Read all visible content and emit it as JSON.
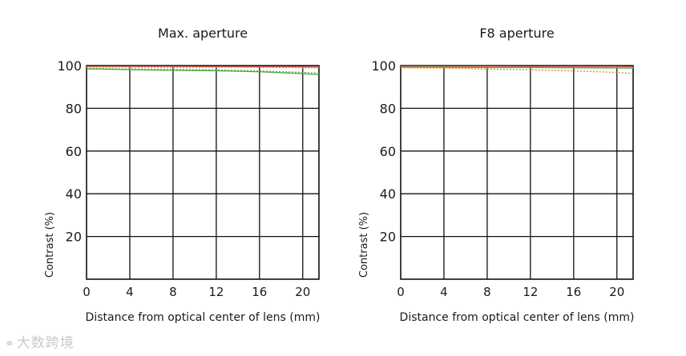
{
  "chart_data": [
    {
      "type": "line",
      "title": "Max. aperture",
      "xlabel": "Distance from optical center of lens (mm)",
      "ylabel": "Contrast (%)",
      "xlim": [
        0,
        21.5
      ],
      "ylim": [
        0,
        100
      ],
      "x_ticks": [
        0,
        4,
        8,
        12,
        16,
        20
      ],
      "y_ticks": [
        20,
        40,
        60,
        80,
        100
      ],
      "grid": true,
      "series": [
        {
          "color": "#d9534f",
          "dash": "solid",
          "x": [
            0,
            4,
            8,
            12,
            16,
            20,
            21.5
          ],
          "y": [
            99.6,
            99.6,
            99.6,
            99.5,
            99.5,
            99.4,
            99.3
          ]
        },
        {
          "color": "#c8a040",
          "dash": "dotted",
          "x": [
            0,
            4,
            8,
            12,
            16,
            20,
            21.5
          ],
          "y": [
            99.3,
            99.3,
            99.2,
            99.2,
            99.1,
            99.0,
            98.9
          ]
        },
        {
          "color": "#5aa845",
          "dash": "solid",
          "x": [
            0,
            4,
            8,
            12,
            16,
            20,
            21.5
          ],
          "y": [
            98.5,
            98.1,
            97.8,
            97.6,
            97.1,
            96.2,
            95.8
          ]
        },
        {
          "color": "#5aa845",
          "dash": "dotted",
          "x": [
            0,
            4,
            8,
            12,
            16,
            20,
            21.5
          ],
          "y": [
            98.7,
            98.4,
            98.2,
            98.0,
            97.5,
            96.8,
            96.5
          ]
        }
      ]
    },
    {
      "type": "line",
      "title": "F8 aperture",
      "xlabel": "Distance from optical center of lens (mm)",
      "ylabel": "Contrast (%)",
      "xlim": [
        0,
        21.5
      ],
      "ylim": [
        0,
        100
      ],
      "x_ticks": [
        0,
        4,
        8,
        12,
        16,
        20
      ],
      "y_ticks": [
        20,
        40,
        60,
        80,
        100
      ],
      "grid": true,
      "series": [
        {
          "color": "#d9534f",
          "dash": "solid",
          "x": [
            0,
            4,
            8,
            12,
            16,
            20,
            21.5
          ],
          "y": [
            99.7,
            99.7,
            99.7,
            99.6,
            99.6,
            99.6,
            99.5
          ]
        },
        {
          "color": "#c8a040",
          "dash": "dotted",
          "x": [
            0,
            4,
            8,
            12,
            16,
            20,
            21.5
          ],
          "y": [
            99.4,
            99.3,
            99.3,
            99.2,
            99.1,
            99.0,
            99.0
          ]
        },
        {
          "color": "#5aa845",
          "dash": "solid",
          "x": [
            0,
            4,
            8,
            12,
            16,
            20,
            21.5
          ],
          "y": [
            99.2,
            99.2,
            99.1,
            99.1,
            99.0,
            98.9,
            98.8
          ]
        },
        {
          "color": "#d08a3a",
          "dash": "dotted",
          "x": [
            0,
            4,
            8,
            12,
            16,
            20,
            21.5
          ],
          "y": [
            99.0,
            98.8,
            98.4,
            98.0,
            97.5,
            96.8,
            96.3
          ]
        }
      ]
    }
  ],
  "watermark": {
    "icon": "link-icon",
    "text": "大数跨境"
  }
}
